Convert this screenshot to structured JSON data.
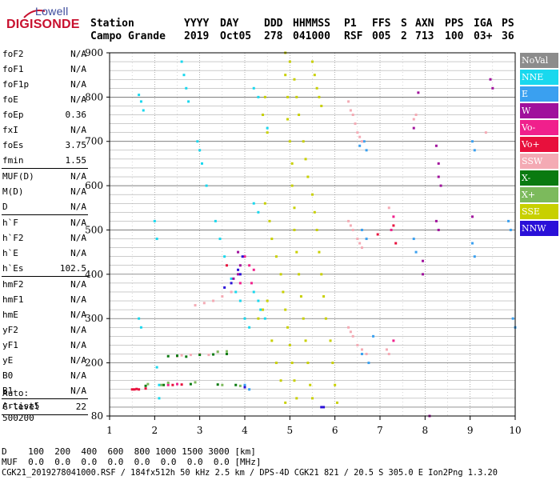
{
  "logo": {
    "top": "Lowell",
    "bottom": "DIGISONDE"
  },
  "header": {
    "labels": [
      "Station",
      "YYYY",
      "DAY",
      "DDD",
      "HHMMSS",
      "P1",
      "FFS",
      "S",
      "AXN",
      "PPS",
      "IGA",
      "PS"
    ],
    "values": [
      "Campo Grande",
      "2019",
      "Oct05",
      "278",
      "041000",
      "RSF",
      "005",
      "2",
      "713",
      "100",
      "03+",
      "36"
    ]
  },
  "params": [
    [
      {
        "label": "foF2",
        "value": "N/A"
      },
      {
        "label": "foF1",
        "value": "N/A"
      },
      {
        "label": "foF1p",
        "value": "N/A"
      },
      {
        "label": "foE",
        "value": "N/A"
      },
      {
        "label": "foEp",
        "value": "0.36"
      },
      {
        "label": "fxI",
        "value": "N/A"
      },
      {
        "label": "foEs",
        "value": "3.75"
      },
      {
        "label": "fmin",
        "value": "1.55"
      }
    ],
    [
      {
        "label": "MUF(D)",
        "value": "N/A"
      },
      {
        "label": "M(D)",
        "value": "N/A"
      },
      {
        "label": "D",
        "value": "N/A"
      }
    ],
    [
      {
        "label": "h`F",
        "value": "N/A"
      },
      {
        "label": "h`F2",
        "value": "N/A"
      },
      {
        "label": "h`E",
        "value": "N/A"
      },
      {
        "label": "h`Es",
        "value": "102.5"
      }
    ],
    [
      {
        "label": "hmF2",
        "value": "N/A"
      },
      {
        "label": "hmF1",
        "value": "N/A"
      },
      {
        "label": "hmE",
        "value": "N/A"
      },
      {
        "label": "yF2",
        "value": "N/A"
      },
      {
        "label": "yF1",
        "value": "N/A"
      },
      {
        "label": "yE",
        "value": "N/A"
      },
      {
        "label": "B0",
        "value": "N/A"
      },
      {
        "label": "B1",
        "value": "N/A"
      }
    ],
    [
      {
        "label": "C-level",
        "value": "22"
      }
    ]
  ],
  "autoscaling": {
    "line1": "Auto:",
    "line2": "Artist5",
    "line3": "500200"
  },
  "legend": [
    {
      "label": "NoVal",
      "color": "#8c8c8c"
    },
    {
      "label": "NNE",
      "color": "#19d8ee"
    },
    {
      "label": "E",
      "color": "#3aa0f0"
    },
    {
      "label": "W",
      "color": "#a0109c"
    },
    {
      "label": "Vo-",
      "color": "#f0208c"
    },
    {
      "label": "Vo+",
      "color": "#e8103c"
    },
    {
      "label": "SSW",
      "color": "#f4aab4"
    },
    {
      "label": "X-",
      "color": "#0a7a10"
    },
    {
      "label": "X+",
      "color": "#7cba5c"
    },
    {
      "label": "SSE",
      "color": "#c8d000"
    },
    {
      "label": "NNW",
      "color": "#2a10d8"
    }
  ],
  "footer": {
    "d_label": "D",
    "d_values": "100  200  400  600  800 1000 1500 3000 [km]",
    "muf_label": "MUF",
    "muf_values": "0.0  0.0  0.0  0.0  0.0  0.0  0.0  0.0 [MHz]",
    "info": "CGK21_2019278041000.RSF / 184fx512h 50 kHz 2.5 km / DPS-4D CGK21 821 / 20.5 S 305.0 E Ion2Png 1.3.20"
  },
  "chart_data": {
    "type": "scatter",
    "title": "",
    "xlabel": "",
    "ylabel": "",
    "xlim": [
      1,
      10
    ],
    "ylim": [
      80,
      900
    ],
    "xticks": [
      1,
      2,
      3,
      4,
      5,
      6,
      7,
      8,
      9,
      10
    ],
    "yticks": [
      80,
      200,
      300,
      400,
      500,
      600,
      700,
      800,
      900
    ],
    "grid": true,
    "legend_position": "right",
    "series": [
      {
        "name": "NNE",
        "points": [
          [
            1.65,
            805
          ],
          [
            1.7,
            790
          ],
          [
            1.75,
            770
          ],
          [
            2.0,
            520
          ],
          [
            2.05,
            480
          ],
          [
            1.65,
            300
          ],
          [
            1.7,
            280
          ],
          [
            2.05,
            190
          ],
          [
            2.1,
            150
          ],
          [
            2.1,
            120
          ],
          [
            2.6,
            880
          ],
          [
            2.65,
            850
          ],
          [
            2.7,
            820
          ],
          [
            2.75,
            790
          ],
          [
            2.95,
            700
          ],
          [
            3.0,
            680
          ],
          [
            3.05,
            650
          ],
          [
            3.15,
            600
          ],
          [
            3.35,
            520
          ],
          [
            3.45,
            480
          ],
          [
            3.55,
            440
          ],
          [
            3.7,
            390
          ],
          [
            3.8,
            360
          ],
          [
            3.9,
            340
          ],
          [
            4.2,
            820
          ],
          [
            4.3,
            800
          ],
          [
            4.4,
            760
          ],
          [
            4.5,
            730
          ],
          [
            4.2,
            560
          ],
          [
            4.3,
            540
          ],
          [
            4.2,
            360
          ],
          [
            4.3,
            340
          ],
          [
            4.0,
            300
          ],
          [
            4.1,
            280
          ],
          [
            4.35,
            320
          ],
          [
            4.45,
            300
          ]
        ]
      },
      {
        "name": "E",
        "points": [
          [
            6.55,
            690
          ],
          [
            6.65,
            700
          ],
          [
            6.7,
            680
          ],
          [
            6.6,
            500
          ],
          [
            6.7,
            480
          ],
          [
            6.6,
            220
          ],
          [
            6.75,
            200
          ],
          [
            6.85,
            260
          ],
          [
            7.75,
            480
          ],
          [
            7.8,
            450
          ],
          [
            9.05,
            470
          ],
          [
            9.1,
            440
          ],
          [
            9.05,
            700
          ],
          [
            9.1,
            680
          ],
          [
            9.85,
            520
          ],
          [
            9.9,
            500
          ],
          [
            9.95,
            300
          ],
          [
            10.0,
            280
          ],
          [
            4.0,
            150
          ],
          [
            4.1,
            140
          ]
        ]
      },
      {
        "name": "W",
        "points": [
          [
            8.25,
            690
          ],
          [
            8.3,
            650
          ],
          [
            8.3,
            620
          ],
          [
            8.35,
            600
          ],
          [
            9.45,
            840
          ],
          [
            9.5,
            820
          ],
          [
            8.25,
            520
          ],
          [
            8.3,
            500
          ],
          [
            7.85,
            810
          ],
          [
            7.95,
            430
          ],
          [
            7.95,
            400
          ],
          [
            3.85,
            450
          ],
          [
            3.9,
            420
          ],
          [
            3.85,
            400
          ],
          [
            3.75,
            390
          ],
          [
            7.75,
            730
          ],
          [
            9.05,
            530
          ],
          [
            8.1,
            80
          ]
        ]
      },
      {
        "name": "Vo-",
        "points": [
          [
            4.0,
            440
          ],
          [
            4.1,
            420
          ],
          [
            4.2,
            410
          ],
          [
            4.15,
            380
          ],
          [
            2.3,
            150
          ],
          [
            2.5,
            152
          ],
          [
            7.3,
            250
          ],
          [
            7.25,
            500
          ],
          [
            7.3,
            530
          ],
          [
            3.9,
            380
          ]
        ]
      },
      {
        "name": "Vo+",
        "points": [
          [
            1.5,
            140
          ],
          [
            1.55,
            140
          ],
          [
            1.6,
            141
          ],
          [
            1.65,
            140
          ],
          [
            1.8,
            142
          ],
          [
            2.4,
            150
          ],
          [
            2.6,
            151
          ],
          [
            3.6,
            420
          ],
          [
            7.3,
            510
          ],
          [
            7.35,
            470
          ],
          [
            6.95,
            490
          ]
        ]
      },
      {
        "name": "SSW",
        "points": [
          [
            6.3,
            790
          ],
          [
            6.35,
            770
          ],
          [
            6.4,
            760
          ],
          [
            6.45,
            740
          ],
          [
            6.5,
            720
          ],
          [
            6.55,
            710
          ],
          [
            6.6,
            700
          ],
          [
            6.3,
            520
          ],
          [
            6.35,
            510
          ],
          [
            6.4,
            500
          ],
          [
            6.5,
            480
          ],
          [
            6.55,
            470
          ],
          [
            6.6,
            460
          ],
          [
            6.3,
            280
          ],
          [
            6.35,
            270
          ],
          [
            6.4,
            260
          ],
          [
            6.5,
            240
          ],
          [
            6.6,
            230
          ],
          [
            6.7,
            220
          ],
          [
            7.75,
            750
          ],
          [
            7.8,
            760
          ],
          [
            2.5,
            215
          ],
          [
            2.6,
            217
          ],
          [
            2.8,
            218
          ],
          [
            3.0,
            220
          ],
          [
            3.2,
            218
          ],
          [
            3.4,
            225
          ],
          [
            2.9,
            330
          ],
          [
            3.1,
            335
          ],
          [
            3.3,
            340
          ],
          [
            3.5,
            350
          ],
          [
            3.7,
            360
          ],
          [
            7.2,
            550
          ],
          [
            9.35,
            720
          ],
          [
            7.15,
            230
          ],
          [
            7.2,
            220
          ]
        ]
      },
      {
        "name": "X-",
        "points": [
          [
            2.3,
            215
          ],
          [
            2.5,
            216
          ],
          [
            2.7,
            214
          ],
          [
            3.0,
            218
          ],
          [
            3.3,
            219
          ],
          [
            3.6,
            220
          ],
          [
            1.8,
            148
          ],
          [
            2.2,
            150
          ],
          [
            2.8,
            152
          ],
          [
            3.4,
            151
          ],
          [
            3.8,
            150
          ]
        ]
      },
      {
        "name": "X+",
        "points": [
          [
            3.5,
            150
          ],
          [
            3.9,
            148
          ],
          [
            2.3,
            155
          ],
          [
            2.9,
            156
          ],
          [
            1.85,
            152
          ],
          [
            2.15,
            150
          ],
          [
            3.4,
            225
          ],
          [
            3.6,
            226
          ]
        ]
      },
      {
        "name": "SSE",
        "points": [
          [
            4.9,
            900
          ],
          [
            4.9,
            850
          ],
          [
            4.95,
            800
          ],
          [
            4.95,
            750
          ],
          [
            5.0,
            700
          ],
          [
            5.05,
            650
          ],
          [
            5.05,
            600
          ],
          [
            5.1,
            550
          ],
          [
            5.1,
            500
          ],
          [
            5.15,
            450
          ],
          [
            5.2,
            400
          ],
          [
            5.25,
            350
          ],
          [
            5.3,
            300
          ],
          [
            5.35,
            250
          ],
          [
            5.4,
            200
          ],
          [
            5.45,
            150
          ],
          [
            5.5,
            120
          ],
          [
            5.0,
            880
          ],
          [
            5.1,
            840
          ],
          [
            5.15,
            800
          ],
          [
            5.2,
            760
          ],
          [
            5.3,
            700
          ],
          [
            5.35,
            660
          ],
          [
            5.4,
            620
          ],
          [
            5.5,
            580
          ],
          [
            5.55,
            540
          ],
          [
            5.6,
            500
          ],
          [
            5.65,
            450
          ],
          [
            5.7,
            400
          ],
          [
            5.75,
            350
          ],
          [
            5.8,
            300
          ],
          [
            5.9,
            250
          ],
          [
            5.95,
            200
          ],
          [
            6.0,
            150
          ],
          [
            6.05,
            110
          ],
          [
            5.5,
            880
          ],
          [
            5.55,
            850
          ],
          [
            5.6,
            820
          ],
          [
            5.65,
            800
          ],
          [
            5.7,
            780
          ],
          [
            4.45,
            800
          ],
          [
            4.4,
            760
          ],
          [
            4.5,
            720
          ],
          [
            4.45,
            560
          ],
          [
            4.55,
            520
          ],
          [
            4.6,
            480
          ],
          [
            4.7,
            440
          ],
          [
            4.8,
            400
          ],
          [
            4.85,
            360
          ],
          [
            4.9,
            320
          ],
          [
            4.95,
            280
          ],
          [
            5.0,
            240
          ],
          [
            5.05,
            200
          ],
          [
            5.1,
            160
          ],
          [
            5.15,
            120
          ],
          [
            4.5,
            340
          ],
          [
            4.4,
            320
          ],
          [
            4.3,
            300
          ],
          [
            4.6,
            250
          ],
          [
            4.7,
            200
          ],
          [
            4.8,
            160
          ],
          [
            4.9,
            110
          ]
        ]
      },
      {
        "name": "NNW",
        "points": [
          [
            3.9,
            400
          ],
          [
            3.85,
            410
          ],
          [
            3.7,
            380
          ],
          [
            3.55,
            370
          ],
          [
            3.95,
            440
          ],
          [
            5.7,
            100
          ],
          [
            5.75,
            100
          ],
          [
            4.0,
            145
          ]
        ]
      }
    ]
  }
}
